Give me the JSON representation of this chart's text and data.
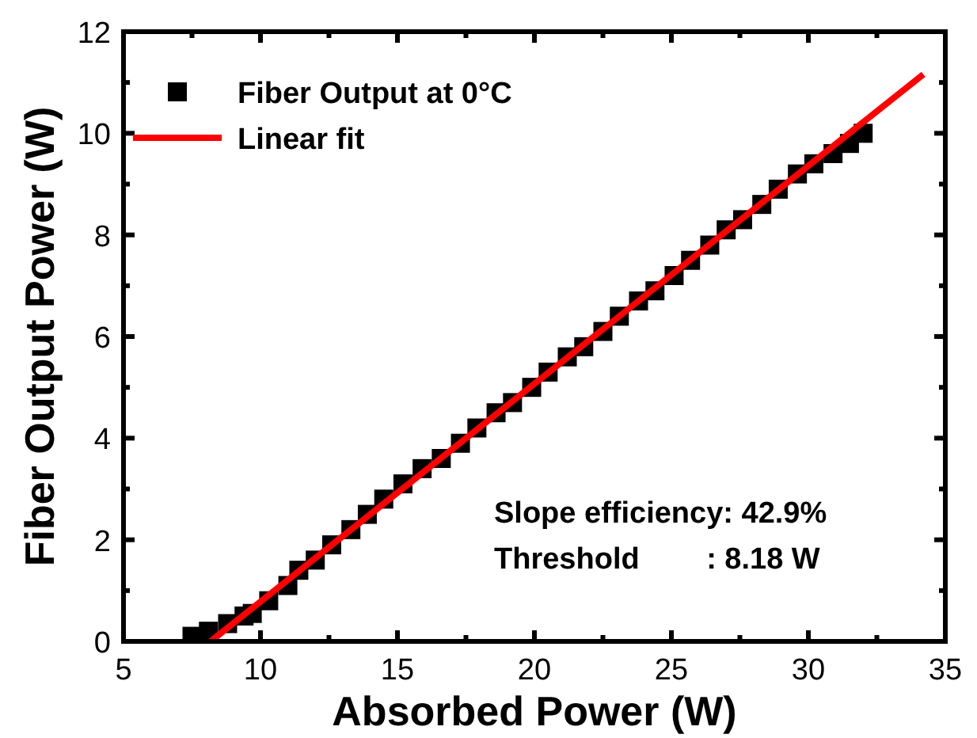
{
  "chart_data": {
    "type": "scatter",
    "xlabel": "Absorbed Power (W)",
    "ylabel": "Fiber Output Power (W)",
    "xlim": [
      5,
      35
    ],
    "xticks": [
      5,
      10,
      15,
      20,
      25,
      30,
      35
    ],
    "ylim": [
      0,
      12
    ],
    "yticks": [
      0,
      2,
      4,
      6,
      8,
      10,
      12
    ],
    "grid": false,
    "legend": "top left",
    "marker": "square",
    "series": [
      {
        "name": "Fiber Output at 0°C",
        "color": "#000000",
        "x": [
          7.5,
          8.1,
          8.8,
          9.4,
          9.7,
          10.3,
          11.0,
          11.4,
          12.0,
          12.6,
          13.3,
          13.9,
          14.5,
          15.2,
          15.9,
          16.6,
          17.3,
          17.9,
          18.6,
          19.2,
          19.9,
          20.5,
          21.2,
          21.8,
          22.5,
          23.1,
          23.8,
          24.4,
          25.1,
          25.7,
          26.4,
          27.0,
          27.6,
          28.3,
          28.9,
          29.6,
          30.2,
          30.9,
          31.5,
          32.0
        ],
        "values": [
          0.1,
          0.2,
          0.35,
          0.5,
          0.55,
          0.8,
          1.1,
          1.4,
          1.6,
          1.9,
          2.2,
          2.5,
          2.8,
          3.1,
          3.4,
          3.6,
          3.9,
          4.2,
          4.5,
          4.7,
          5.0,
          5.3,
          5.6,
          5.8,
          6.1,
          6.4,
          6.7,
          6.9,
          7.2,
          7.5,
          7.8,
          8.1,
          8.3,
          8.6,
          8.9,
          9.2,
          9.4,
          9.6,
          9.8,
          10.0
        ]
      },
      {
        "name": "Linear fit",
        "type": "line",
        "color": "#ff0000",
        "marker": "none",
        "line_style": "solid",
        "x": [
          8.18,
          34.2
        ],
        "values": [
          0,
          11.16
        ]
      }
    ],
    "annotations": [
      "Slope efficiency: 42.9%",
      "Threshold        : 8.18 W"
    ]
  }
}
